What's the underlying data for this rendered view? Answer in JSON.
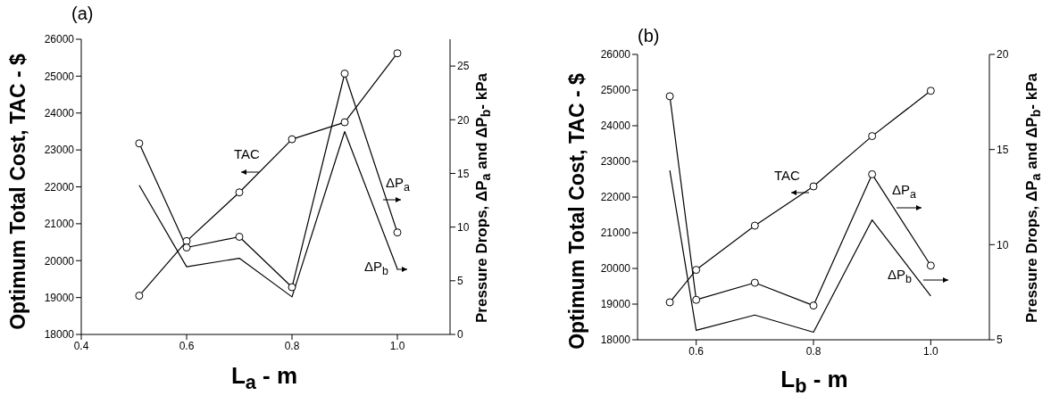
{
  "chart_data": [
    {
      "type": "line",
      "title": "(a)",
      "xlabel": "L$_{a}$ - m",
      "ylabel": "Optimum Total Cost, TAC - $",
      "y2label": "Pressure Drops, ΔP$_{a}$ and ΔP$_{b}$- kPa",
      "x": [
        0.51,
        0.6,
        0.7,
        0.8,
        0.9,
        1.0
      ],
      "xlim": [
        0.4,
        1.1
      ],
      "xticks": [
        0.4,
        0.6,
        0.8,
        {
          "value": 1,
          "label": "1.0"
        }
      ],
      "ylim": [
        18000,
        26000
      ],
      "yticks": [
        18000,
        19000,
        20000,
        21000,
        22000,
        23000,
        24000,
        25000,
        26000
      ],
      "y2lim": [
        0,
        27.5
      ],
      "y2ticks": [
        0,
        5,
        10,
        15,
        20,
        25
      ],
      "series": [
        {
          "name": "TAC",
          "color": "#000000",
          "marker": "circle",
          "values": [
            19050,
            20530,
            21850,
            23290,
            23750,
            25620
          ]
        },
        {
          "name": "ΔP$_{a}$",
          "color": "#000000",
          "marker": "circle",
          "axis": "y2",
          "values": [
            17.8,
            8.1,
            9.1,
            4.4,
            24.3,
            9.5
          ]
        },
        {
          "name": "ΔP$_{b}$",
          "color": "#000000",
          "marker": "none",
          "axis": "y2",
          "values": [
            13.9,
            6.3,
            7.1,
            3.5,
            18.9,
            6.1
          ]
        }
      ]
    },
    {
      "type": "line",
      "title": "(b)",
      "xlabel": "L$_{b}$ - m",
      "ylabel": "Optimum Total Cost, TAC - $",
      "y2label": "Pressure Drops, ΔP$_{a}$ and ΔP$_{b}$- kPa",
      "x": [
        0.555,
        0.6,
        0.7,
        0.8,
        0.9,
        1.0
      ],
      "xlim": [
        0.5,
        1.1
      ],
      "xticks": [
        0.6,
        0.8,
        {
          "value": 1,
          "label": "1.0"
        }
      ],
      "ylim": [
        18000,
        26000
      ],
      "yticks": [
        18000,
        19000,
        20000,
        21000,
        22000,
        23000,
        24000,
        25000,
        26000
      ],
      "y2lim": [
        5,
        20
      ],
      "y2ticks": [
        5,
        10,
        15,
        20
      ],
      "series": [
        {
          "name": "TAC",
          "color": "#000000",
          "marker": "circle",
          "values": [
            19050,
            19960,
            21200,
            22300,
            23710,
            24980
          ]
        },
        {
          "name": "ΔP$_{a}$",
          "color": "#000000",
          "marker": "circle",
          "axis": "y2",
          "values": [
            17.8,
            7.1,
            8.0,
            6.8,
            13.7,
            8.9
          ]
        },
        {
          "name": "ΔP$_{b}$",
          "color": "#000000",
          "marker": "none",
          "axis": "y2",
          "values": [
            13.9,
            5.5,
            6.3,
            5.4,
            11.3,
            7.3
          ]
        }
      ]
    }
  ]
}
